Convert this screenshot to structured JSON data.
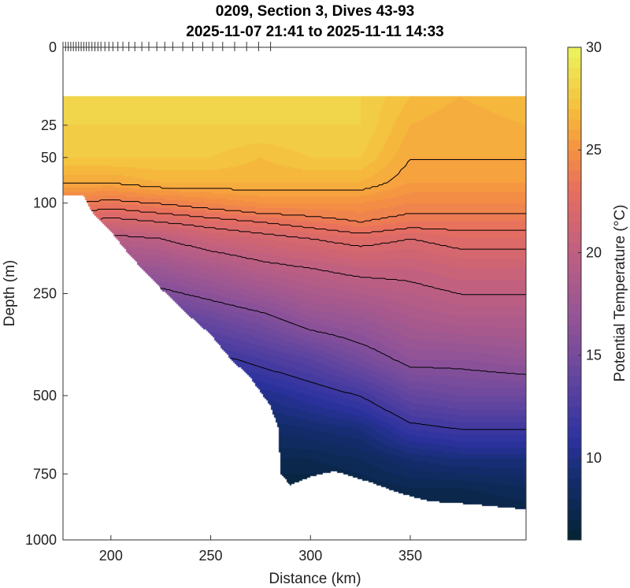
{
  "chart_data": {
    "type": "heatmap",
    "subtype": "filled-contour-section",
    "title": [
      "0209, Section 3, Dives 43-93",
      "2025-11-07 21:41 to 2025-11-11 14:33"
    ],
    "xlabel": "Distance (km)",
    "ylabel": "Depth (m)",
    "colorbar_label": "Potential Temperature (°C)",
    "xlim": [
      176,
      408
    ],
    "ylim": [
      0,
      1000
    ],
    "yscale": "sqrt",
    "xticks": [
      200,
      250,
      300,
      350
    ],
    "yticks": [
      0,
      25,
      50,
      100,
      250,
      500,
      750,
      1000
    ],
    "clim": [
      6,
      30
    ],
    "cticks": [
      10,
      15,
      20,
      25,
      30
    ],
    "contour_levels": [
      26,
      24,
      23,
      22,
      20,
      16,
      12
    ],
    "dive_distances": [
      176,
      177.3,
      178.6,
      179.9,
      181.2,
      182.5,
      183.8,
      185.1,
      186.4,
      187.7,
      189,
      190.5,
      192,
      193.5,
      195,
      197,
      199,
      201,
      203.5,
      206,
      209,
      212,
      215.5,
      219,
      223,
      227,
      231,
      236,
      241,
      246,
      251,
      256,
      262,
      268,
      274,
      280
    ],
    "depths": [
      10,
      25,
      50,
      75,
      100,
      125,
      150,
      200,
      250,
      300,
      400,
      500,
      600,
      700,
      800,
      900
    ],
    "distances": [
      176,
      200,
      225,
      250,
      275,
      300,
      325,
      350,
      375,
      408
    ],
    "temperature": [
      [
        28,
        28,
        27.5,
        26,
        24,
        22,
        20,
        17,
        15,
        13,
        11,
        9,
        8,
        7,
        6.5,
        6
      ],
      [
        28,
        28,
        27.5,
        26,
        23.5,
        21.5,
        19.5,
        17,
        15,
        13,
        11,
        9,
        8,
        7,
        6.5,
        6
      ],
      [
        28,
        28,
        27.5,
        26.5,
        24,
        22,
        20,
        17.5,
        15.5,
        13.5,
        11,
        9,
        8,
        7,
        6.5,
        6
      ],
      [
        28,
        28,
        27.5,
        26.5,
        24.5,
        22.5,
        21,
        18.5,
        16.5,
        14.5,
        11.5,
        9.5,
        8,
        7,
        6.5,
        6
      ],
      [
        28,
        28,
        27,
        26.5,
        25,
        23,
        21.5,
        19.5,
        17.5,
        15.5,
        12.5,
        10,
        8.5,
        7.5,
        6.5,
        6
      ],
      [
        28,
        28,
        27.5,
        26.5,
        25,
        23.5,
        22,
        20,
        18.5,
        17,
        13.5,
        11,
        9,
        7.5,
        6.5,
        6
      ],
      [
        28,
        28,
        27.5,
        26.5,
        25,
        24,
        22.5,
        20.5,
        19,
        17.5,
        15,
        12,
        9.5,
        8,
        7,
        6.5
      ],
      [
        27,
        26.5,
        26,
        25.5,
        24.5,
        23.5,
        22,
        20.5,
        19.5,
        18.5,
        16.5,
        14,
        11.5,
        9,
        7.5,
        6.5
      ],
      [
        26.5,
        26,
        26,
        25.5,
        24.5,
        23.5,
        22.5,
        21,
        20,
        19,
        16.5,
        14.5,
        12,
        9.5,
        7.5,
        6.5
      ],
      [
        27,
        26.5,
        26,
        25.5,
        24.5,
        23.5,
        22.5,
        21,
        20,
        19,
        17,
        14.5,
        12,
        9.5,
        8,
        7
      ]
    ],
    "bottom": {
      "distances": [
        176,
        186,
        190,
        200,
        210,
        220,
        230,
        240,
        250,
        260,
        270,
        280,
        284,
        285,
        290,
        300,
        312,
        330,
        345,
        360,
        380,
        408
      ],
      "depths": [
        90,
        90,
        110,
        140,
        180,
        220,
        260,
        300,
        340,
        400,
        450,
        530,
        600,
        750,
        790,
        760,
        740,
        780,
        820,
        850,
        860,
        880
      ]
    },
    "colormap": {
      "values": [
        6,
        9,
        11,
        14,
        17,
        20,
        23,
        25,
        27,
        30
      ],
      "colors": [
        "#042333",
        "#142d6e",
        "#2d32a0",
        "#6446a0",
        "#965596",
        "#be5f82",
        "#e66e5f",
        "#f59141",
        "#f5be3c",
        "#ebf55f"
      ]
    },
    "contour_color": "#000000"
  }
}
